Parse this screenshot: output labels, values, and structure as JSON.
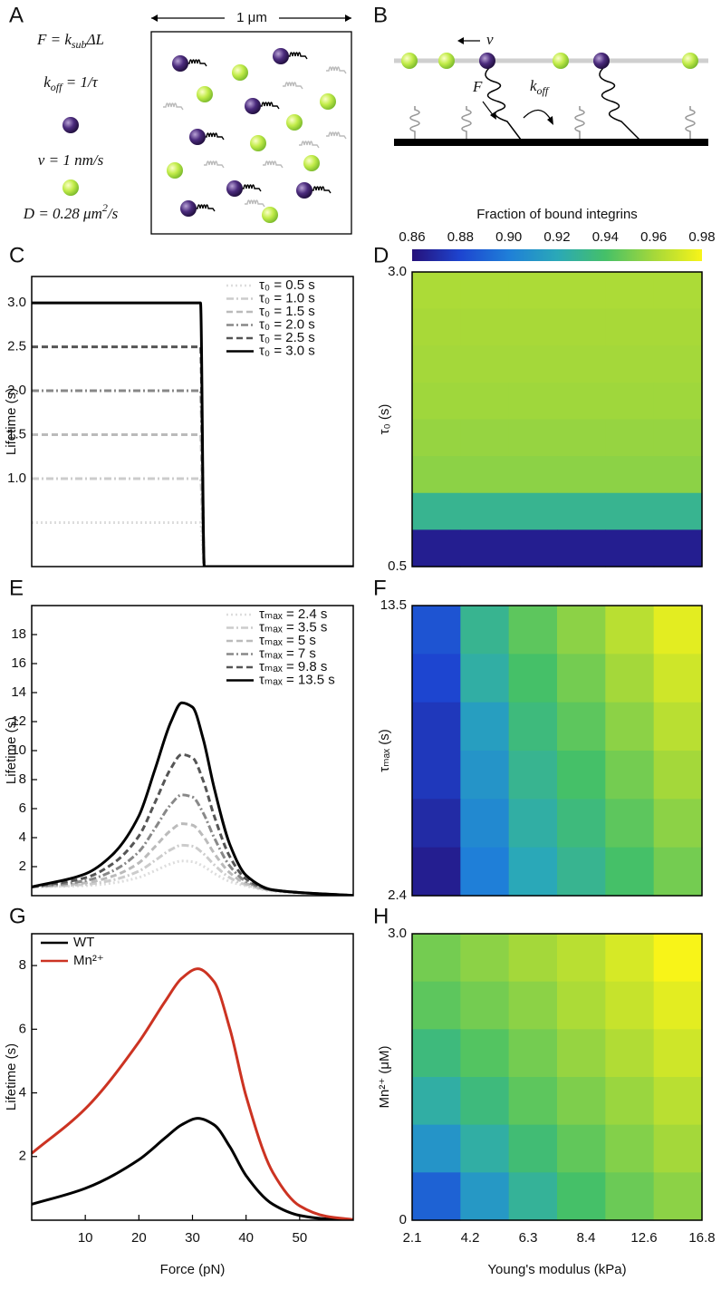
{
  "panels": {
    "letters": [
      "A",
      "B",
      "C",
      "D",
      "E",
      "F",
      "G",
      "H"
    ]
  },
  "panel_a": {
    "scale": "1 μm",
    "equations": [
      [
        {
          "t": "F = k"
        },
        {
          "t": "sub",
          "s": "sub"
        },
        {
          "t": "ΔL"
        }
      ],
      [
        {
          "t": "k"
        },
        {
          "t": "off",
          "s": "sub"
        },
        {
          "t": " = 1/τ"
        }
      ],
      [
        {
          "t": "v = 1 nm/s"
        }
      ],
      [
        {
          "t": "D = 0.28 μm"
        },
        {
          "t": "2",
          "s": "sup"
        },
        {
          "t": "/s"
        }
      ]
    ]
  },
  "panel_b": {
    "velocity": "v",
    "force": "F",
    "rate": "k",
    "rate_sub": "off"
  },
  "colorbar": {
    "title": "Fraction of bound integrins",
    "clim": [
      0.86,
      0.98
    ],
    "ticks": [
      0.86,
      0.88,
      {
        "value": 0.9,
        "label": "0.90"
      },
      0.92,
      0.94,
      0.96,
      0.98
    ],
    "colors": [
      "#26117a",
      "#1d45d0",
      "#1f7fd8",
      "#2aa8b8",
      "#45c068",
      "#a4d83a",
      "#f8f418"
    ]
  },
  "chart_data": [
    {
      "type": "line",
      "ylabel": "Lifetime (s)",
      "xlim": [
        0,
        60
      ],
      "ylim": [
        0,
        3.3
      ],
      "yticks": [
        {
          "value": 1,
          "label": "1.0"
        },
        1.5,
        {
          "value": 2,
          "label": "2.0"
        },
        2.5,
        {
          "value": 3,
          "label": "3.0"
        }
      ],
      "legend": "upper right",
      "series": [
        {
          "name": "τ₀ = 0.5 s",
          "color": "#dddddd",
          "dash": "dotted",
          "x": [
            0,
            31.5,
            32.2,
            60
          ],
          "values": [
            0.5,
            0.5,
            0,
            0
          ]
        },
        {
          "name": "τ₀ = 1.0 s",
          "color": "#cccccc",
          "dash": "dashdot",
          "x": [
            0,
            31.5,
            32.2,
            60
          ],
          "values": [
            1,
            1,
            0,
            0
          ]
        },
        {
          "name": "τ₀ = 1.5 s",
          "color": "#bbbbbb",
          "dash": "dashed",
          "x": [
            0,
            31.5,
            32.2,
            60
          ],
          "values": [
            1.5,
            1.5,
            0,
            0
          ]
        },
        {
          "name": "τ₀ = 2.0 s",
          "color": "#888888",
          "dash": "dashdot",
          "x": [
            0,
            31.5,
            32.2,
            60
          ],
          "values": [
            2,
            2,
            0,
            0
          ]
        },
        {
          "name": "τ₀ = 2.5 s",
          "color": "#555555",
          "dash": "dashed",
          "x": [
            0,
            31.5,
            32.2,
            60
          ],
          "values": [
            2.5,
            2.5,
            0,
            0
          ]
        },
        {
          "name": "τ₀ = 3.0 s",
          "color": "#000000",
          "dash": "solid",
          "x": [
            0,
            31.5,
            32.2,
            60
          ],
          "values": [
            3,
            3,
            0,
            0
          ]
        }
      ]
    },
    {
      "type": "line",
      "ylabel": "Lifetime (s)",
      "xlim": [
        0,
        60
      ],
      "ylim": [
        0,
        20
      ],
      "yticks": [
        2,
        4,
        6,
        8,
        10,
        12,
        14,
        16,
        18
      ],
      "legend": "upper right",
      "series": [
        {
          "name": "τₘₐₓ = 2.4 s",
          "color": "#dddddd",
          "dash": "dotted",
          "x": [
            0,
            10,
            15,
            20,
            23,
            26,
            28,
            30,
            32,
            34,
            37,
            40,
            45,
            60
          ],
          "values": [
            0.6,
            0.69,
            0.87,
            1.26,
            1.72,
            2.2,
            2.39,
            2.34,
            2.03,
            1.55,
            0.97,
            0.67,
            0.3,
            0.01
          ]
        },
        {
          "name": "τₘₐₓ = 3.5 s",
          "color": "#cccccc",
          "dash": "dashdot",
          "x": [
            0,
            10,
            15,
            20,
            23,
            26,
            28,
            30,
            32,
            34,
            37,
            40,
            45,
            60
          ],
          "values": [
            0.6,
            0.77,
            1.07,
            1.69,
            2.42,
            3.18,
            3.48,
            3.41,
            2.91,
            2.15,
            1.23,
            0.75,
            0.35,
            0.01
          ]
        },
        {
          "name": "τₘₐₓ = 5 s",
          "color": "#bbbbbb",
          "dash": "dashed",
          "x": [
            0,
            10,
            15,
            20,
            23,
            26,
            28,
            30,
            32,
            34,
            37,
            40,
            45,
            60
          ],
          "values": [
            0.6,
            0.88,
            1.33,
            2.26,
            3.37,
            4.51,
            4.96,
            4.86,
            4.1,
            2.95,
            1.57,
            0.84,
            0.37,
            0.01
          ]
        },
        {
          "name": "τₘₐₓ = 7 s",
          "color": "#888888",
          "dash": "dashdot",
          "x": [
            0,
            10,
            15,
            20,
            23,
            26,
            28,
            30,
            32,
            34,
            37,
            40,
            45,
            60
          ],
          "values": [
            0.6,
            1.03,
            1.68,
            3.03,
            4.64,
            6.3,
            6.95,
            6.8,
            5.7,
            4.04,
            2.03,
            0.98,
            0.38,
            0.01
          ]
        },
        {
          "name": "τₘₐₓ = 9.8 s",
          "color": "#555555",
          "dash": "dashed",
          "x": [
            0,
            10,
            15,
            20,
            23,
            26,
            28,
            30,
            32,
            34,
            37,
            40,
            45,
            60
          ],
          "values": [
            0.6,
            1.23,
            2.17,
            4.11,
            6.42,
            8.79,
            9.73,
            9.51,
            7.93,
            5.55,
            2.67,
            1.16,
            0.39,
            0.01
          ]
        },
        {
          "name": "τₘₐₓ = 13.5 s",
          "color": "#000000",
          "dash": "solid",
          "x": [
            0,
            10,
            15,
            20,
            23,
            26,
            28,
            30,
            32,
            34,
            37,
            40,
            45,
            60
          ],
          "values": [
            0.6,
            1.5,
            2.8,
            5.5,
            8.7,
            12,
            13.3,
            13,
            10.8,
            7.5,
            3.5,
            1.4,
            0.4,
            0.01
          ]
        }
      ]
    },
    {
      "type": "line",
      "ylabel": "Lifetime (s)",
      "xlabel": "Force (pN)",
      "xlim": [
        0,
        60
      ],
      "ylim": [
        0,
        9
      ],
      "xticks": [
        10,
        20,
        30,
        40,
        50
      ],
      "yticks": [
        2,
        4,
        6,
        8
      ],
      "legend": "upper left",
      "series": [
        {
          "name": "WT",
          "color": "#000000",
          "dash": "solid",
          "x": [
            0,
            10,
            20,
            25,
            28,
            31,
            34,
            37,
            40,
            45,
            50,
            55,
            60
          ],
          "values": [
            0.5,
            1.0,
            1.9,
            2.6,
            3.0,
            3.2,
            3.0,
            2.3,
            1.4,
            0.5,
            0.15,
            0.04,
            0.01
          ]
        },
        {
          "name": "Mn²⁺",
          "color": "#cc3322",
          "dash": "solid",
          "x": [
            0,
            10,
            20,
            25,
            28,
            31,
            34,
            37,
            40,
            45,
            50,
            55,
            60
          ],
          "values": [
            2.1,
            3.5,
            5.6,
            6.9,
            7.6,
            7.9,
            7.5,
            6.0,
            3.9,
            1.5,
            0.45,
            0.12,
            0.02
          ]
        }
      ]
    },
    {
      "type": "heatmap",
      "ylabel": "τ₀ (s)",
      "ylim": [
        0.5,
        3
      ],
      "yticks": [
        0.5,
        {
          "value": 3,
          "label": "3.0"
        }
      ],
      "values": [
        [
          0.962,
          0.962,
          0.962,
          0.962,
          0.962,
          0.962
        ],
        [
          0.961,
          0.961,
          0.961,
          0.961,
          0.961,
          0.961
        ],
        [
          0.96,
          0.96,
          0.96,
          0.96,
          0.96,
          0.96
        ],
        [
          0.959,
          0.959,
          0.959,
          0.959,
          0.959,
          0.959
        ],
        [
          0.957,
          0.957,
          0.957,
          0.957,
          0.957,
          0.957
        ],
        [
          0.955,
          0.955,
          0.955,
          0.955,
          0.955,
          0.955
        ],
        [
          0.93,
          0.93,
          0.93,
          0.93,
          0.93,
          0.93
        ],
        [
          0.865,
          0.865,
          0.865,
          0.865,
          0.865,
          0.865
        ]
      ]
    },
    {
      "type": "heatmap",
      "ylabel": "τₘₐₓ (s)",
      "ylim": [
        2.4,
        13.5
      ],
      "yticks": [
        2.4,
        13.5
      ],
      "values": [
        [
          0.885,
          0.93,
          0.945,
          0.955,
          0.965,
          0.975
        ],
        [
          0.88,
          0.925,
          0.94,
          0.95,
          0.96,
          0.97
        ],
        [
          0.875,
          0.915,
          0.935,
          0.945,
          0.955,
          0.965
        ],
        [
          0.875,
          0.91,
          0.93,
          0.94,
          0.95,
          0.96
        ],
        [
          0.87,
          0.905,
          0.925,
          0.935,
          0.945,
          0.955
        ],
        [
          0.865,
          0.9,
          0.92,
          0.93,
          0.94,
          0.95
        ]
      ]
    },
    {
      "type": "heatmap",
      "ylabel": "Mn²⁺ (μM)",
      "xlabel": "Young's modulus (kPa)",
      "ylim": [
        0,
        3
      ],
      "yticks": [
        0,
        {
          "value": 3,
          "label": "3.0"
        }
      ],
      "categories": [
        "2.1",
        "4.2",
        "6.3",
        "8.4",
        "12.6",
        "16.8"
      ],
      "values": [
        [
          0.95,
          0.955,
          0.96,
          0.965,
          0.972,
          0.98
        ],
        [
          0.945,
          0.95,
          0.955,
          0.962,
          0.968,
          0.975
        ],
        [
          0.935,
          0.943,
          0.95,
          0.957,
          0.963,
          0.97
        ],
        [
          0.925,
          0.935,
          0.945,
          0.952,
          0.958,
          0.965
        ],
        [
          0.91,
          0.925,
          0.937,
          0.946,
          0.953,
          0.96
        ],
        [
          0.89,
          0.912,
          0.928,
          0.94,
          0.948,
          0.955
        ]
      ]
    }
  ]
}
